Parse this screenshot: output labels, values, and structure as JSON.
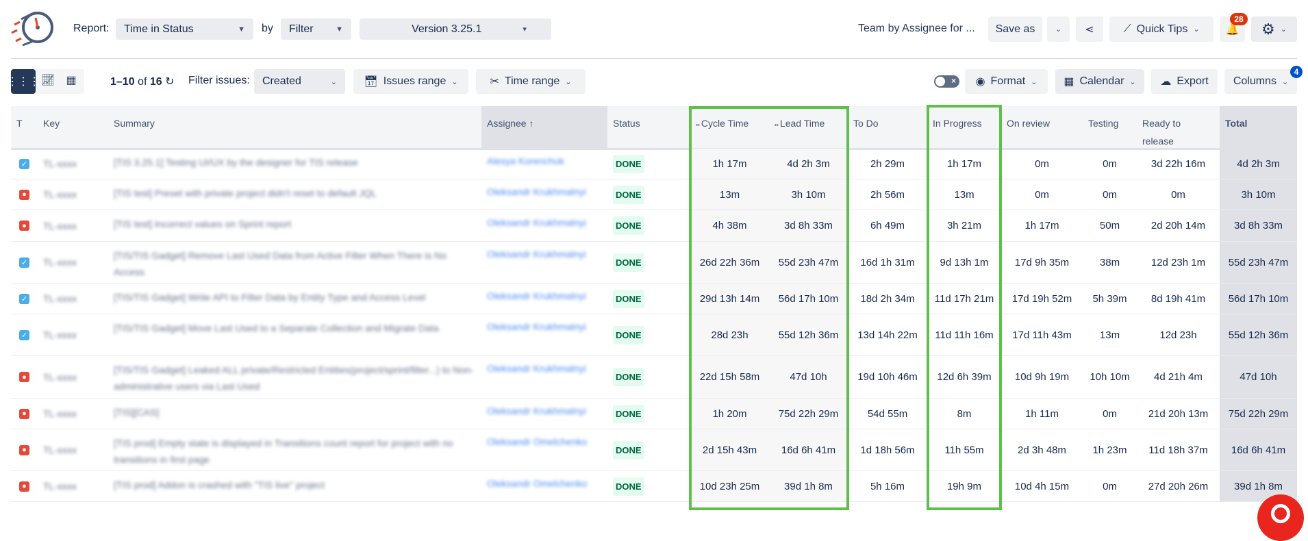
{
  "header": {
    "report_label": "Report:",
    "report_value": "Time in Status",
    "by_label": "by",
    "by_value": "Filter",
    "version": "Version 3.25.1",
    "saved_report_name": "Team by Assignee for ...",
    "save_as": "Save as",
    "quick_tips": "Quick Tips",
    "notifications_count": "28"
  },
  "toolbar": {
    "pagination": "1–10",
    "of_label": "of",
    "total_count": "16",
    "filter_issues_label": "Filter issues:",
    "filter_issues_value": "Created",
    "issues_range": "Issues range",
    "time_range": "Time range",
    "format": "Format",
    "calendar": "Calendar",
    "export": "Export",
    "columns": "Columns",
    "columns_badge": "4"
  },
  "colors": {
    "accent": "#253858",
    "highlight": "#5ec04a",
    "badge_red": "#de350b",
    "badge_blue": "#0052cc",
    "done_bg": "#e3fcef",
    "done_text": "#006644"
  },
  "table": {
    "headers": [
      "T",
      "Key",
      "Summary",
      "Assignee",
      "Status",
      "Cycle Time",
      "Lead Time",
      "To Do",
      "In Progress",
      "On review",
      "Testing",
      "Ready to release",
      "Total"
    ],
    "sort_indicator": "↑",
    "rows": [
      {
        "type": "task",
        "key": "TL-xxxx",
        "summary": "[TIS 3.25.1] Testing UI/UX by the designer for TIS release",
        "assignee": "Alesya Korenchuk",
        "status": "DONE",
        "values": [
          "1h 17m",
          "4d 2h 3m",
          "2h 29m",
          "1h 17m",
          "0m",
          "0m",
          "3d 22h 16m",
          "4d 2h 3m"
        ]
      },
      {
        "type": "bug",
        "key": "TL-xxxx",
        "summary": "[TIS test] Preset with private project didn't reset to default JQL",
        "assignee": "Oleksandr Krukhmalnyi",
        "status": "DONE",
        "values": [
          "13m",
          "3h 10m",
          "2h 56m",
          "13m",
          "0m",
          "0m",
          "0m",
          "3h 10m"
        ]
      },
      {
        "type": "bug",
        "key": "TL-xxxx",
        "summary": "[TIS test] Incorrect values on Sprint report",
        "assignee": "Oleksandr Krukhmalnyi",
        "status": "DONE",
        "values": [
          "4h 38m",
          "3d 8h 33m",
          "6h 49m",
          "3h 21m",
          "1h 17m",
          "50m",
          "2d 20h 14m",
          "3d 8h 33m"
        ]
      },
      {
        "type": "task",
        "key": "TL-xxxx",
        "summary": "[TIS/TIS Gadget] Remove Last Used Data from Active Filter When There is No Access",
        "assignee": "Oleksandr Krukhmalnyi",
        "status": "DONE",
        "values": [
          "26d 22h 36m",
          "55d 23h 47m",
          "16d 1h 31m",
          "9d 13h 1m",
          "17d 9h 35m",
          "38m",
          "12d 23h 1m",
          "55d 23h 47m"
        ]
      },
      {
        "type": "task",
        "key": "TL-xxxx",
        "summary": "[TIS/TIS Gadget] Write API to Filter Data by Entity Type and Access Level",
        "assignee": "Oleksandr Krukhmalnyi",
        "status": "DONE",
        "values": [
          "29d 13h 14m",
          "56d 17h 10m",
          "18d 2h 34m",
          "11d 17h 21m",
          "17d 19h 52m",
          "5h 39m",
          "8d 19h 41m",
          "56d 17h 10m"
        ]
      },
      {
        "type": "task",
        "key": "TL-xxxx",
        "summary": "[TIS/TIS Gadget] Move Last Used to a Separate Collection and Migrate Data",
        "assignee": "Oleksandr Krukhmalnyi",
        "status": "DONE",
        "values": [
          "28d 23h",
          "55d 12h 36m",
          "13d 14h 22m",
          "11d 11h 16m",
          "17d 11h 43m",
          "13m",
          "12d 23h",
          "55d 12h 36m"
        ]
      },
      {
        "type": "bug",
        "key": "TL-xxxx",
        "summary": "[TIS/TIS Gadget] Leaked ALL private/Restricted Entities(project/sprint/filter...) to Non-administrative users via Last Used",
        "assignee": "Oleksandr Krukhmalnyi",
        "status": "DONE",
        "values": [
          "22d 15h 58m",
          "47d 10h",
          "19d 10h 46m",
          "12d 6h 39m",
          "10d 9h 19m",
          "10h 10m",
          "4d 21h 4m",
          "47d 10h"
        ]
      },
      {
        "type": "bug",
        "key": "TL-xxxx",
        "summary": "[TIS][CAS]",
        "assignee": "Oleksandr Krukhmalnyi",
        "status": "DONE",
        "values": [
          "1h 20m",
          "75d 22h 29m",
          "54d 55m",
          "8m",
          "1h 11m",
          "0m",
          "21d 20h 13m",
          "75d 22h 29m"
        ]
      },
      {
        "type": "bug",
        "key": "TL-xxxx",
        "summary": "[TIS prod] Empty state is displayed in Transitions count report for project with no transitions in first page",
        "assignee": "Oleksandr Omelchenko",
        "status": "DONE",
        "values": [
          "2d 15h 43m",
          "16d 6h 41m",
          "1d 18h 56m",
          "11h 55m",
          "2d 3h 48m",
          "1h 23m",
          "11d 18h 37m",
          "16d 6h 41m"
        ]
      },
      {
        "type": "bug",
        "key": "TL-xxxx",
        "summary": "[TIS prod] Addon is crashed with \"TIS live\" project",
        "assignee": "Oleksandr Omelchenko",
        "status": "DONE",
        "values": [
          "10d 23h 25m",
          "39d 1h 8m",
          "5h 16m",
          "19h 9m",
          "10d 4h 15m",
          "0m",
          "27d 20h 26m",
          "39d 1h 8m"
        ]
      }
    ]
  }
}
